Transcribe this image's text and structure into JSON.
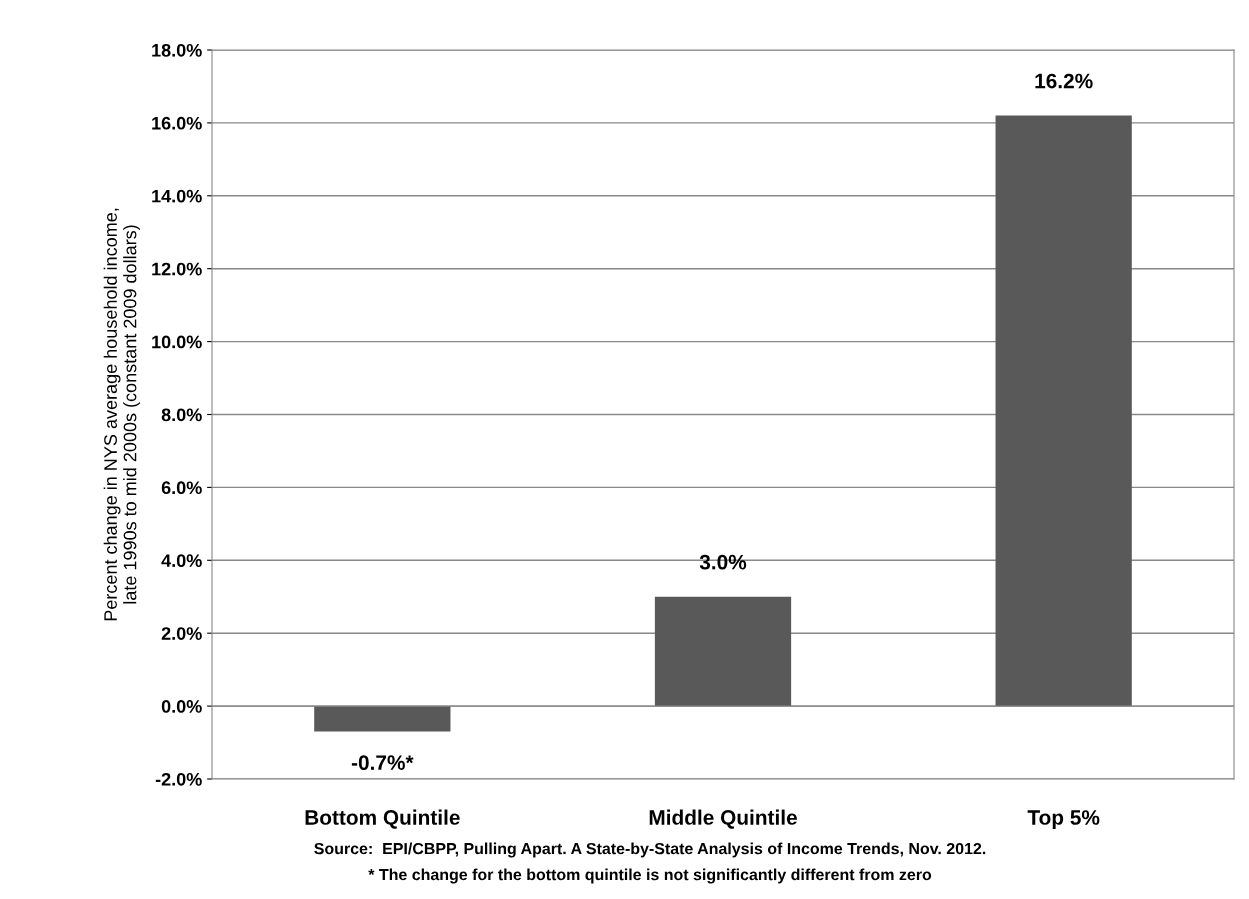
{
  "chart_data": {
    "type": "bar",
    "categories": [
      "Bottom Quintile",
      "Middle Quintile",
      "Top 5%"
    ],
    "values": [
      -0.7,
      3.0,
      16.2
    ],
    "value_labels": [
      "-0.7%*",
      "3.0%",
      "16.2%"
    ],
    "color": "#595959",
    "ylabel": "Percent change in NYS average household income,\nlate 1990s to mid 2000s (constant 2009 dollars)",
    "ylim": [
      -2,
      18
    ],
    "yticks": [
      {
        "value": -2,
        "label": "-2.0%"
      },
      {
        "value": 0,
        "label": "0.0%"
      },
      {
        "value": 2,
        "label": "2.0%"
      },
      {
        "value": 4,
        "label": "4.0%"
      },
      {
        "value": 6,
        "label": "6.0%"
      },
      {
        "value": 8,
        "label": "8.0%"
      },
      {
        "value": 10,
        "label": "10.0%"
      },
      {
        "value": 12,
        "label": "12.0%"
      },
      {
        "value": 14,
        "label": "14.0%"
      },
      {
        "value": 16,
        "label": "16.0%"
      },
      {
        "value": 18,
        "label": "18.0%"
      }
    ],
    "grid": "y",
    "annotations": [
      "Source:  EPI/CBPP, Pulling Apart. A State-by-State Analysis of Income Trends, Nov. 2012.",
      "* The change for the bottom quintile is not significantly different from zero"
    ]
  }
}
